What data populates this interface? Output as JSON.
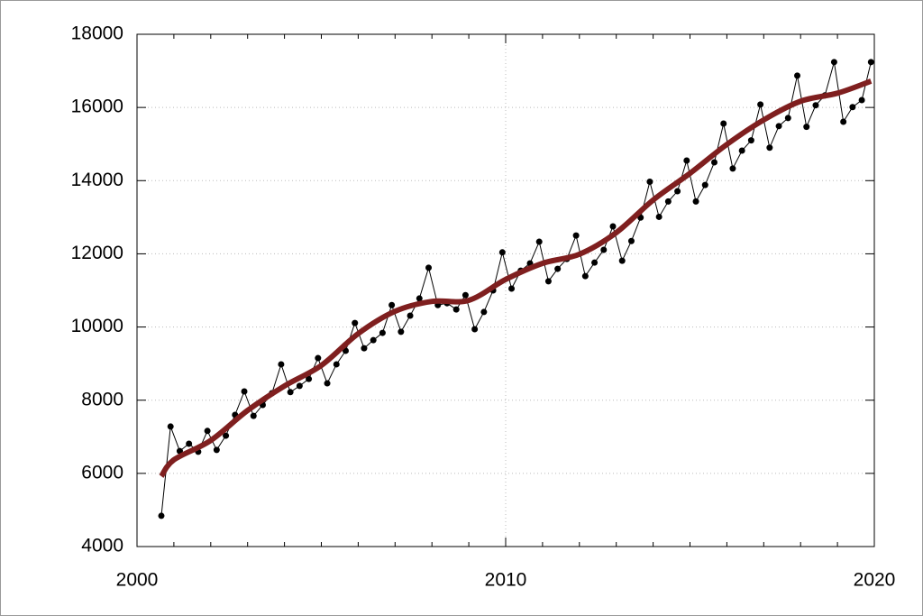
{
  "chart_data": {
    "type": "line",
    "xlim": [
      2000,
      2020
    ],
    "xticks": [
      2000,
      2010,
      2020
    ],
    "xminorticks": [
      2001,
      2002,
      2003,
      2004,
      2005,
      2006,
      2007,
      2008,
      2009,
      2011,
      2012,
      2013,
      2014,
      2015,
      2016,
      2017,
      2018,
      2019
    ],
    "ylim": [
      4000,
      18000
    ],
    "yticks": [
      4000,
      6000,
      8000,
      10000,
      12000,
      14000,
      16000,
      18000
    ],
    "grid": true,
    "series": [
      {
        "color": "#000000",
        "markers": true,
        "x": [
          2000.66,
          2000.91,
          2001.16,
          2001.41,
          2001.66,
          2001.91,
          2002.16,
          2002.41,
          2002.66,
          2002.91,
          2003.16,
          2003.41,
          2003.66,
          2003.91,
          2004.16,
          2004.41,
          2004.66,
          2004.91,
          2005.16,
          2005.41,
          2005.66,
          2005.91,
          2006.16,
          2006.41,
          2006.66,
          2006.91,
          2007.16,
          2007.41,
          2007.66,
          2007.91,
          2008.16,
          2008.41,
          2008.66,
          2008.91,
          2009.16,
          2009.41,
          2009.66,
          2009.91,
          2010.16,
          2010.41,
          2010.66,
          2010.91,
          2011.16,
          2011.41,
          2011.66,
          2011.91,
          2012.16,
          2012.41,
          2012.66,
          2012.91,
          2013.16,
          2013.41,
          2013.66,
          2013.91,
          2014.16,
          2014.41,
          2014.66,
          2014.91,
          2015.16,
          2015.41,
          2015.66,
          2015.91,
          2016.16,
          2016.41,
          2016.66,
          2016.91,
          2017.16,
          2017.41,
          2017.66,
          2017.91,
          2018.16,
          2018.41,
          2018.66,
          2018.91,
          2019.16,
          2019.41,
          2019.66,
          2019.91
        ],
        "values": [
          4840,
          7280,
          6610,
          6810,
          6590,
          7160,
          6640,
          7030,
          7600,
          8240,
          7570,
          7870,
          8190,
          8980,
          8220,
          8390,
          8580,
          9150,
          8460,
          8980,
          9350,
          10110,
          9420,
          9640,
          9840,
          10600,
          9870,
          10310,
          10780,
          11620,
          10600,
          10650,
          10480,
          10870,
          9940,
          10410,
          11000,
          12040,
          11050,
          11540,
          11740,
          12330,
          11250,
          11590,
          11860,
          12500,
          11390,
          11760,
          12110,
          12750,
          11810,
          12350,
          12990,
          13970,
          13010,
          13430,
          13710,
          14550,
          13430,
          13880,
          14500,
          15560,
          14330,
          14820,
          15100,
          16080,
          14900,
          15490,
          15710,
          16870,
          15470,
          16060,
          16330,
          17240,
          15610,
          16010,
          16200,
          17240
        ]
      },
      {
        "color": "#7f1f1f",
        "markers": false,
        "x": [
          2000.66,
          2001,
          2002,
          2003,
          2004,
          2005,
          2006,
          2007,
          2008,
          2009,
          2010,
          2011,
          2012,
          2013,
          2014,
          2015,
          2016,
          2017,
          2018,
          2019,
          2019.91
        ],
        "values": [
          5920,
          6370,
          6900,
          7720,
          8390,
          8950,
          9820,
          10430,
          10700,
          10730,
          11300,
          11740,
          11990,
          12580,
          13470,
          14200,
          14990,
          15660,
          16170,
          16390,
          16720
        ]
      }
    ]
  }
}
